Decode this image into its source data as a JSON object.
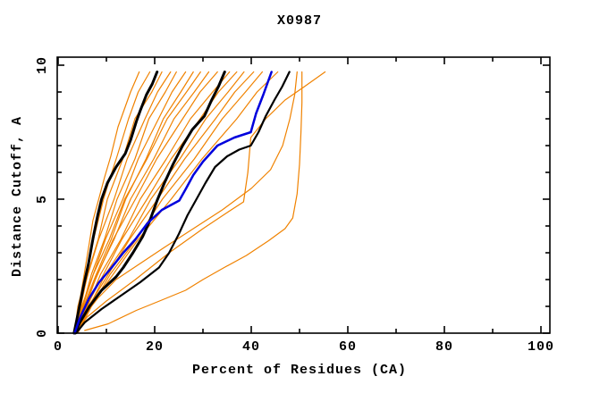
{
  "chart_data": {
    "type": "line",
    "title": "X0987",
    "xlabel": "Percent of Residues (CA)",
    "ylabel": "Distance Cutoff, A",
    "xlim": [
      0,
      102
    ],
    "ylim": [
      0,
      10.3
    ],
    "x_major_ticks": [
      0,
      20,
      40,
      60,
      80,
      100
    ],
    "x_minor_ticks": [
      10,
      30,
      50,
      70,
      90
    ],
    "y_major_ticks": [
      0,
      5,
      10
    ],
    "y_minor_ticks": [
      1,
      2,
      3,
      4,
      6,
      7,
      8,
      9
    ],
    "grid": false,
    "legend": "none",
    "frame": "box-with-mirrored-ticks",
    "colors": {
      "orange": "#f08200",
      "black": "#000000",
      "blue": "#0000dd"
    },
    "series": [
      {
        "name": "model-orange-01",
        "color": "orange",
        "width": 1.2,
        "points": [
          [
            3.2,
            0
          ],
          [
            3.8,
            0.5
          ],
          [
            4.3,
            1
          ],
          [
            5.4,
            2.2
          ],
          [
            6.4,
            3.3
          ],
          [
            7.2,
            4.2
          ],
          [
            8.4,
            5
          ],
          [
            9.6,
            5.8
          ],
          [
            10.9,
            6.6
          ],
          [
            12.4,
            7.7
          ],
          [
            13.4,
            8.2
          ],
          [
            15,
            9
          ],
          [
            16.8,
            9.75
          ]
        ]
      },
      {
        "name": "model-orange-02",
        "color": "orange",
        "width": 1.2,
        "points": [
          [
            3.4,
            0
          ],
          [
            4.1,
            1
          ],
          [
            5.8,
            2.2
          ],
          [
            7.2,
            3.4
          ],
          [
            9.4,
            5
          ],
          [
            10.6,
            5.7
          ],
          [
            12.2,
            6.6
          ],
          [
            14.6,
            8
          ],
          [
            16.6,
            9
          ],
          [
            19,
            9.75
          ]
        ]
      },
      {
        "name": "model-orange-03",
        "color": "orange",
        "width": 1.2,
        "points": [
          [
            3.3,
            0
          ],
          [
            4.7,
            1
          ],
          [
            6.1,
            2.2
          ],
          [
            8.3,
            3.5
          ],
          [
            10.2,
            5
          ],
          [
            13.4,
            6.5
          ],
          [
            15.9,
            8
          ],
          [
            19.4,
            9
          ],
          [
            21.5,
            9.75
          ]
        ]
      },
      {
        "name": "model-orange-04",
        "color": "orange",
        "width": 1.2,
        "points": [
          [
            3.5,
            0
          ],
          [
            4.4,
            1
          ],
          [
            6.2,
            2.2
          ],
          [
            8.4,
            3.5
          ],
          [
            11.6,
            5
          ],
          [
            14.3,
            6.5
          ],
          [
            18,
            8
          ],
          [
            20.6,
            9
          ],
          [
            23.3,
            9.75
          ]
        ]
      },
      {
        "name": "model-orange-05",
        "color": "orange",
        "width": 1.2,
        "points": [
          [
            3.6,
            0
          ],
          [
            5.1,
            1
          ],
          [
            6.9,
            2.2
          ],
          [
            9.6,
            3.5
          ],
          [
            12.2,
            5
          ],
          [
            15.9,
            6.5
          ],
          [
            18.8,
            8
          ],
          [
            22.2,
            9
          ],
          [
            24.5,
            9.75
          ]
        ]
      },
      {
        "name": "model-orange-06",
        "color": "orange",
        "width": 1.2,
        "points": [
          [
            3.4,
            0
          ],
          [
            4.9,
            1
          ],
          [
            7.3,
            2.2
          ],
          [
            9.8,
            3.5
          ],
          [
            13.4,
            5
          ],
          [
            16.6,
            6.5
          ],
          [
            20.8,
            8
          ],
          [
            23.6,
            9
          ],
          [
            26.4,
            9.75
          ]
        ]
      },
      {
        "name": "model-orange-07",
        "color": "orange",
        "width": 1.2,
        "points": [
          [
            3.7,
            0
          ],
          [
            5.3,
            1
          ],
          [
            7.9,
            2.2
          ],
          [
            11,
            3.5
          ],
          [
            14,
            5
          ],
          [
            18.2,
            6.5
          ],
          [
            21.8,
            8
          ],
          [
            25.4,
            9
          ],
          [
            28,
            9.75
          ]
        ]
      },
      {
        "name": "model-orange-08",
        "color": "orange",
        "width": 1.2,
        "points": [
          [
            3.5,
            0
          ],
          [
            5.1,
            1
          ],
          [
            7.3,
            2.2
          ],
          [
            10.6,
            3.5
          ],
          [
            13.8,
            5
          ],
          [
            18.4,
            6.5
          ],
          [
            22.6,
            8
          ],
          [
            26.6,
            9
          ],
          [
            29.5,
            9.75
          ]
        ]
      },
      {
        "name": "model-orange-09",
        "color": "orange",
        "width": 1.2,
        "points": [
          [
            3.8,
            0
          ],
          [
            5.7,
            1
          ],
          [
            8.1,
            2.2
          ],
          [
            11.6,
            3.5
          ],
          [
            15,
            5
          ],
          [
            19.8,
            6.5
          ],
          [
            24,
            8
          ],
          [
            28.2,
            9
          ],
          [
            31.2,
            9.75
          ]
        ]
      },
      {
        "name": "model-orange-10",
        "color": "orange",
        "width": 1.2,
        "points": [
          [
            3.6,
            0
          ],
          [
            5.3,
            1
          ],
          [
            8.2,
            2.2
          ],
          [
            11.4,
            3.5
          ],
          [
            16,
            5
          ],
          [
            20.4,
            6.5
          ],
          [
            25.8,
            8
          ],
          [
            29.4,
            9
          ],
          [
            33,
            9.75
          ]
        ]
      },
      {
        "name": "model-orange-11",
        "color": "orange",
        "width": 1.2,
        "points": [
          [
            3.9,
            0
          ],
          [
            6.1,
            1
          ],
          [
            8.8,
            2.2
          ],
          [
            13,
            3.5
          ],
          [
            17,
            5
          ],
          [
            22.4,
            6.5
          ],
          [
            27.4,
            8
          ],
          [
            32,
            9
          ],
          [
            35.5,
            9.75
          ]
        ]
      },
      {
        "name": "model-orange-12",
        "color": "orange",
        "width": 1.2,
        "points": [
          [
            3.7,
            0
          ],
          [
            5.9,
            1
          ],
          [
            9.4,
            2.2
          ],
          [
            13.2,
            3.5
          ],
          [
            18.4,
            5
          ],
          [
            23.4,
            6.5
          ],
          [
            29.4,
            8
          ],
          [
            33.2,
            9
          ],
          [
            37,
            9.75
          ]
        ]
      },
      {
        "name": "model-orange-13",
        "color": "orange",
        "width": 1.2,
        "points": [
          [
            4,
            0
          ],
          [
            6.5,
            1
          ],
          [
            9.8,
            2.2
          ],
          [
            14.6,
            3.5
          ],
          [
            19.2,
            5
          ],
          [
            25.2,
            6.5
          ],
          [
            30.6,
            8
          ],
          [
            35.2,
            9
          ],
          [
            38.5,
            9.75
          ]
        ]
      },
      {
        "name": "model-orange-14",
        "color": "orange",
        "width": 1.2,
        "points": [
          [
            3.8,
            0
          ],
          [
            6.3,
            1
          ],
          [
            10.4,
            2.2
          ],
          [
            14.8,
            3.5
          ],
          [
            20.6,
            5
          ],
          [
            26.2,
            6.5
          ],
          [
            32.6,
            8
          ],
          [
            36.6,
            9
          ],
          [
            40.5,
            9.75
          ]
        ]
      },
      {
        "name": "model-orange-15",
        "color": "orange",
        "width": 1.2,
        "points": [
          [
            4.1,
            0
          ],
          [
            6.9,
            1
          ],
          [
            10.8,
            2.2
          ],
          [
            16.2,
            3.5
          ],
          [
            21.6,
            5
          ],
          [
            28.2,
            6.5
          ],
          [
            34,
            8
          ],
          [
            38.8,
            9
          ],
          [
            42.3,
            9.75
          ]
        ]
      },
      {
        "name": "model-orange-16",
        "color": "orange",
        "width": 1.2,
        "points": [
          [
            3.9,
            0
          ],
          [
            6.7,
            1
          ],
          [
            11.4,
            2.2
          ],
          [
            16.6,
            3.5
          ],
          [
            23.4,
            5
          ],
          [
            29.8,
            6.5
          ],
          [
            37,
            8
          ],
          [
            41.2,
            9
          ],
          [
            45.5,
            9.75
          ]
        ]
      },
      {
        "name": "model-orange-17",
        "color": "orange",
        "width": 1.2,
        "points": [
          [
            3.5,
            0
          ],
          [
            6,
            0.6
          ],
          [
            10,
            1.2
          ],
          [
            16,
            2
          ],
          [
            23,
            3
          ],
          [
            30,
            3.9
          ],
          [
            35,
            4.5
          ],
          [
            38.4,
            4.9
          ],
          [
            39.3,
            6
          ],
          [
            39.9,
            7.3
          ],
          [
            43,
            8
          ],
          [
            47,
            8.7
          ],
          [
            51,
            9.2
          ],
          [
            55.3,
            9.75
          ]
        ]
      },
      {
        "name": "model-orange-18",
        "color": "orange",
        "width": 1.2,
        "points": [
          [
            5.5,
            0.1
          ],
          [
            10.4,
            0.35
          ],
          [
            16.2,
            0.85
          ],
          [
            21,
            1.2
          ],
          [
            26.4,
            1.6
          ],
          [
            30,
            2
          ],
          [
            34.4,
            2.45
          ],
          [
            39,
            2.9
          ],
          [
            43.6,
            3.45
          ],
          [
            47,
            3.9
          ],
          [
            48.6,
            4.3
          ],
          [
            49.5,
            5.2
          ],
          [
            50,
            6.3
          ],
          [
            50.3,
            7.5
          ],
          [
            50.5,
            8.6
          ],
          [
            50.5,
            9.75
          ]
        ]
      },
      {
        "name": "model-orange-19",
        "color": "orange",
        "width": 1.2,
        "points": [
          [
            3.6,
            0
          ],
          [
            5.6,
            0.7
          ],
          [
            8.2,
            1.3
          ],
          [
            12,
            2
          ],
          [
            17,
            2.6
          ],
          [
            22,
            3.2
          ],
          [
            28,
            3.9
          ],
          [
            34,
            4.6
          ],
          [
            40,
            5.4
          ],
          [
            44,
            6.1
          ],
          [
            46.5,
            7
          ],
          [
            48,
            8
          ],
          [
            49,
            8.9
          ],
          [
            49.5,
            9.75
          ]
        ]
      },
      {
        "name": "model-black-1",
        "color": "black",
        "width": 3,
        "points": [
          [
            3.3,
            0
          ],
          [
            4.2,
            0.8
          ],
          [
            5.2,
            1.7
          ],
          [
            6.3,
            2.6
          ],
          [
            7.3,
            3.6
          ],
          [
            8.2,
            4.4
          ],
          [
            9,
            5
          ],
          [
            10.2,
            5.6
          ],
          [
            12,
            6.2
          ],
          [
            13.9,
            6.7
          ],
          [
            15,
            7.2
          ],
          [
            16.2,
            7.9
          ],
          [
            17,
            8.3
          ],
          [
            18.3,
            8.9
          ],
          [
            19.5,
            9.3
          ],
          [
            20.5,
            9.75
          ]
        ]
      },
      {
        "name": "model-black-2",
        "color": "black",
        "width": 3,
        "points": [
          [
            3.5,
            0
          ],
          [
            4.5,
            0.4
          ],
          [
            6.5,
            1
          ],
          [
            9,
            1.6
          ],
          [
            12,
            2.1
          ],
          [
            13.5,
            2.45
          ],
          [
            15.5,
            3
          ],
          [
            17.5,
            3.6
          ],
          [
            19,
            4.2
          ],
          [
            20.5,
            4.95
          ],
          [
            22,
            5.6
          ],
          [
            23.8,
            6.3
          ],
          [
            25.8,
            7
          ],
          [
            27.8,
            7.6
          ],
          [
            30.3,
            8.1
          ],
          [
            31.8,
            8.7
          ],
          [
            33.2,
            9.2
          ],
          [
            34.5,
            9.75
          ]
        ]
      },
      {
        "name": "model-black-3",
        "color": "black",
        "width": 2.2,
        "points": [
          [
            3.7,
            0
          ],
          [
            5.5,
            0.4
          ],
          [
            9,
            0.9
          ],
          [
            13,
            1.4
          ],
          [
            17,
            1.9
          ],
          [
            20.9,
            2.45
          ],
          [
            23,
            3
          ],
          [
            25,
            3.7
          ],
          [
            26.8,
            4.4
          ],
          [
            28.5,
            4.95
          ],
          [
            30.5,
            5.6
          ],
          [
            32.5,
            6.2
          ],
          [
            35,
            6.6
          ],
          [
            37.5,
            6.85
          ],
          [
            39.9,
            7
          ],
          [
            41.5,
            7.5
          ],
          [
            43,
            8.1
          ],
          [
            44.8,
            8.7
          ],
          [
            46.4,
            9.2
          ],
          [
            47.9,
            9.75
          ]
        ]
      },
      {
        "name": "model-blue-1",
        "color": "blue",
        "width": 2.5,
        "points": [
          [
            3.4,
            0
          ],
          [
            4.6,
            0.6
          ],
          [
            6.4,
            1.3
          ],
          [
            8.5,
            1.9
          ],
          [
            11.1,
            2.45
          ],
          [
            13.5,
            3
          ],
          [
            16,
            3.5
          ],
          [
            18.5,
            4.1
          ],
          [
            21.5,
            4.6
          ],
          [
            25.1,
            4.95
          ],
          [
            26.5,
            5.4
          ],
          [
            28,
            5.9
          ],
          [
            30,
            6.4
          ],
          [
            33,
            7
          ],
          [
            36.5,
            7.3
          ],
          [
            39.9,
            7.5
          ],
          [
            41,
            8.2
          ],
          [
            42.5,
            8.9
          ],
          [
            43.5,
            9.4
          ],
          [
            44.2,
            9.75
          ]
        ]
      }
    ]
  }
}
